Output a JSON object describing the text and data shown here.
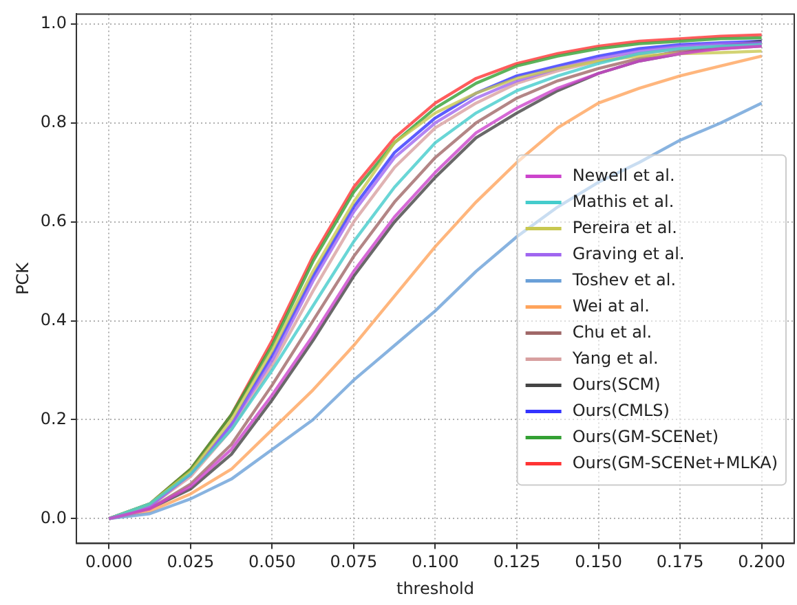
{
  "chart_data": {
    "type": "line",
    "xlabel": "threshold",
    "ylabel": "PCK",
    "x": [
      0,
      0.0125,
      0.025,
      0.0375,
      0.05,
      0.0625,
      0.075,
      0.0875,
      0.1,
      0.1125,
      0.125,
      0.1375,
      0.15,
      0.1625,
      0.175,
      0.1875,
      0.2
    ],
    "xlim": [
      -0.01,
      0.21
    ],
    "ylim": [
      -0.05,
      1.02
    ],
    "xticks": [
      {
        "value": 0,
        "label": "0.000"
      },
      {
        "value": 0.025,
        "label": "0.025"
      },
      {
        "value": 0.05,
        "label": "0.050"
      },
      {
        "value": 0.075,
        "label": "0.075"
      },
      {
        "value": 0.1,
        "label": "0.100"
      },
      {
        "value": 0.125,
        "label": "0.125"
      },
      {
        "value": 0.15,
        "label": "0.150"
      },
      {
        "value": 0.175,
        "label": "0.175"
      },
      {
        "value": 0.2,
        "label": "0.200"
      }
    ],
    "yticks": [
      {
        "value": 0,
        "label": "0.0"
      },
      {
        "value": 0.2,
        "label": "0.2"
      },
      {
        "value": 0.4,
        "label": "0.4"
      },
      {
        "value": 0.6,
        "label": "0.6"
      },
      {
        "value": 0.8,
        "label": "0.8"
      },
      {
        "value": 1,
        "label": "1.0"
      }
    ],
    "grid": true,
    "legend": "right",
    "marker": "none",
    "line_style": "solid",
    "series": [
      {
        "name": "Newell et al.",
        "color": "#cc44cc",
        "values": [
          0,
          0.02,
          0.065,
          0.14,
          0.25,
          0.37,
          0.5,
          0.61,
          0.7,
          0.78,
          0.83,
          0.87,
          0.9,
          0.925,
          0.94,
          0.95,
          0.955
        ]
      },
      {
        "name": "Mathis et al.",
        "color": "#44cccc",
        "values": [
          0,
          0.03,
          0.09,
          0.18,
          0.3,
          0.43,
          0.56,
          0.67,
          0.76,
          0.82,
          0.865,
          0.895,
          0.92,
          0.94,
          0.95,
          0.955,
          0.958
        ]
      },
      {
        "name": "Pereira et al.",
        "color": "#c8c850",
        "values": [
          0,
          0.03,
          0.095,
          0.2,
          0.34,
          0.5,
          0.64,
          0.76,
          0.82,
          0.86,
          0.89,
          0.91,
          0.925,
          0.935,
          0.94,
          0.942,
          0.945
        ]
      },
      {
        "name": "Graving et al.",
        "color": "#a066f0",
        "values": [
          0,
          0.025,
          0.09,
          0.19,
          0.32,
          0.48,
          0.62,
          0.73,
          0.8,
          0.85,
          0.885,
          0.91,
          0.93,
          0.945,
          0.955,
          0.96,
          0.962
        ]
      },
      {
        "name": "Toshev et al.",
        "color": "#6aa0d8",
        "values": [
          0,
          0.01,
          0.04,
          0.08,
          0.14,
          0.2,
          0.28,
          0.35,
          0.42,
          0.5,
          0.57,
          0.63,
          0.68,
          0.72,
          0.765,
          0.8,
          0.84
        ]
      },
      {
        "name": "Wei at al.",
        "color": "#ffa45c",
        "values": [
          0,
          0.015,
          0.05,
          0.1,
          0.18,
          0.26,
          0.35,
          0.45,
          0.55,
          0.64,
          0.72,
          0.79,
          0.84,
          0.87,
          0.895,
          0.915,
          0.935
        ]
      },
      {
        "name": "Chu et al.",
        "color": "#a06868",
        "values": [
          0,
          0.02,
          0.07,
          0.15,
          0.27,
          0.4,
          0.53,
          0.64,
          0.73,
          0.8,
          0.85,
          0.885,
          0.91,
          0.93,
          0.945,
          0.95,
          0.955
        ]
      },
      {
        "name": "Yang et al.",
        "color": "#d8a0a0",
        "values": [
          0,
          0.025,
          0.085,
          0.18,
          0.31,
          0.46,
          0.6,
          0.71,
          0.79,
          0.84,
          0.88,
          0.905,
          0.925,
          0.94,
          0.95,
          0.955,
          0.958
        ]
      },
      {
        "name": "Ours(SCM)",
        "color": "#444444",
        "values": [
          0,
          0.02,
          0.06,
          0.13,
          0.24,
          0.36,
          0.49,
          0.6,
          0.69,
          0.77,
          0.82,
          0.865,
          0.9,
          0.925,
          0.94,
          0.955,
          0.965
        ]
      },
      {
        "name": "Ours(CMLS)",
        "color": "#3333ff",
        "values": [
          0,
          0.025,
          0.09,
          0.19,
          0.33,
          0.49,
          0.63,
          0.74,
          0.81,
          0.86,
          0.895,
          0.915,
          0.935,
          0.95,
          0.958,
          0.962,
          0.965
        ]
      },
      {
        "name": "Ours(GM-SCENet)",
        "color": "#33a033",
        "values": [
          0,
          0.03,
          0.1,
          0.21,
          0.35,
          0.52,
          0.66,
          0.76,
          0.83,
          0.88,
          0.915,
          0.935,
          0.95,
          0.96,
          0.965,
          0.97,
          0.972
        ]
      },
      {
        "name": "Ours(GM-SCENet+MLKA)",
        "color": "#ff3333",
        "values": [
          0,
          0.03,
          0.1,
          0.21,
          0.36,
          0.53,
          0.67,
          0.77,
          0.84,
          0.89,
          0.92,
          0.94,
          0.955,
          0.965,
          0.97,
          0.975,
          0.978
        ]
      }
    ]
  }
}
